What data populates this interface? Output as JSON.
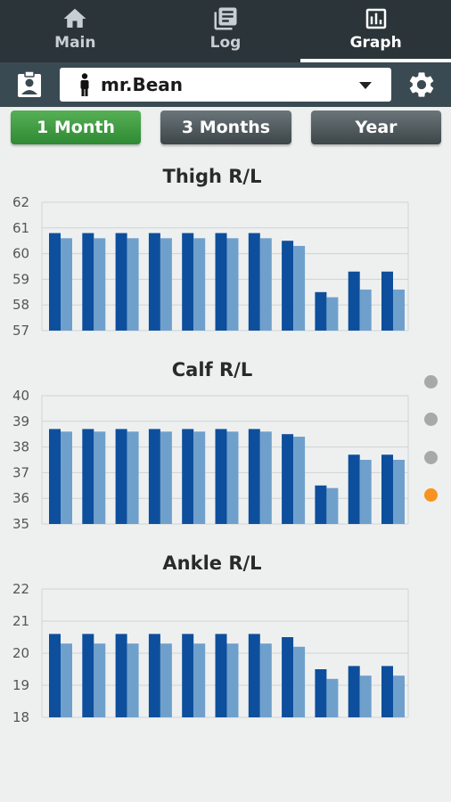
{
  "nav": {
    "tabs": [
      {
        "label": "Main",
        "icon": "home-icon"
      },
      {
        "label": "Log",
        "icon": "log-icon"
      },
      {
        "label": "Graph",
        "icon": "graph-icon",
        "active": true
      }
    ]
  },
  "user": {
    "selected_name": "mr.Bean"
  },
  "periods": [
    {
      "label": "1 Month",
      "selected": true
    },
    {
      "label": "3 Months",
      "selected": false
    },
    {
      "label": "Year",
      "selected": false
    }
  ],
  "colors": {
    "right_series": "#0d4f9c",
    "left_series": "#6fa0cc",
    "accent": "#f7931e",
    "selected_period": "#3a9a3f"
  },
  "pager": {
    "count": 4,
    "active_index": 3
  },
  "chart_data": [
    {
      "type": "bar",
      "title": "Thigh R/L",
      "ylim": [
        57,
        62
      ],
      "yticks": [
        "62",
        "61",
        "60",
        "59",
        "58",
        "57"
      ],
      "series": [
        {
          "values": [
            60.8,
            60.8,
            60.8,
            60.8,
            60.8,
            60.8,
            60.8,
            60.5,
            58.5,
            59.3,
            59.3
          ]
        },
        {
          "values": [
            60.6,
            60.6,
            60.6,
            60.6,
            60.6,
            60.6,
            60.6,
            60.3,
            58.3,
            58.6,
            58.6
          ]
        }
      ]
    },
    {
      "type": "bar",
      "title": "Calf R/L",
      "ylim": [
        35,
        40
      ],
      "yticks": [
        "40",
        "39",
        "38",
        "37",
        "36",
        "35"
      ],
      "series": [
        {
          "values": [
            38.7,
            38.7,
            38.7,
            38.7,
            38.7,
            38.7,
            38.7,
            38.5,
            36.5,
            37.7,
            37.7
          ]
        },
        {
          "values": [
            38.6,
            38.6,
            38.6,
            38.6,
            38.6,
            38.6,
            38.6,
            38.4,
            36.4,
            37.5,
            37.5
          ]
        }
      ]
    },
    {
      "type": "bar",
      "title": "Ankle R/L",
      "ylim": [
        18,
        22
      ],
      "yticks": [
        "22",
        "21",
        "20",
        "19",
        "18"
      ],
      "series": [
        {
          "values": [
            20.6,
            20.6,
            20.6,
            20.6,
            20.6,
            20.6,
            20.6,
            20.5,
            19.5,
            19.6,
            19.6
          ]
        },
        {
          "values": [
            20.3,
            20.3,
            20.3,
            20.3,
            20.3,
            20.3,
            20.3,
            20.2,
            19.2,
            19.3,
            19.3
          ]
        }
      ]
    }
  ]
}
